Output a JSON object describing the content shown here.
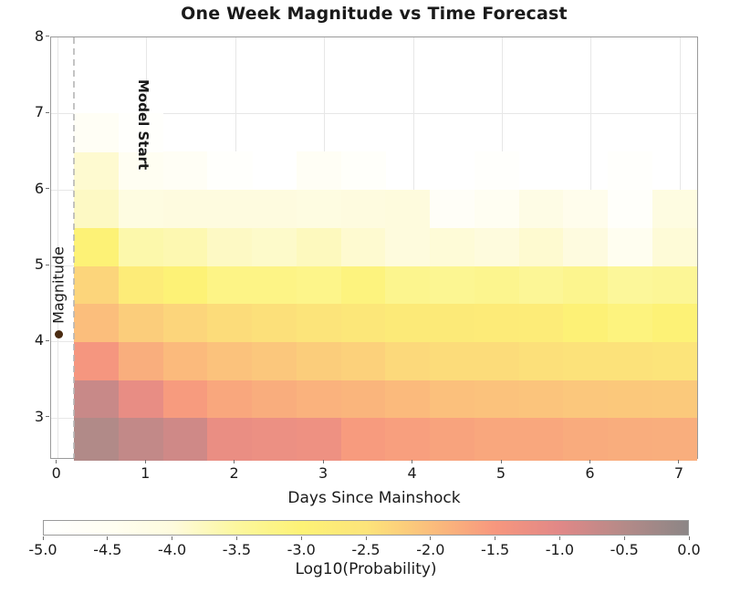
{
  "chart_data": {
    "type": "heatmap",
    "title": "One Week Magnitude vs Time Forecast",
    "xlabel": "Days Since Mainshock",
    "ylabel": "Magnitude",
    "x_ticks": [
      0,
      1,
      2,
      3,
      4,
      5,
      6,
      7
    ],
    "y_ticks": [
      3,
      4,
      5,
      6,
      7,
      8
    ],
    "xlim": [
      -0.07,
      7.25
    ],
    "ylim": [
      2.44,
      8.0
    ],
    "grid": true,
    "x_bin_start_day": 0.19,
    "x_bin_width_days": 0.5,
    "n_time_bins": 14,
    "mag_bin_edges": [
      2.5,
      3.0,
      3.5,
      4.0,
      4.5,
      5.0,
      5.5,
      6.0,
      6.5,
      7.0,
      7.5,
      8.0
    ],
    "rows_bottom_to_top": [
      {
        "mag_lo": 2.5,
        "mag_hi": 3.0,
        "values": [
          -0.45,
          -0.65,
          -0.8,
          -1.2,
          -1.25,
          -1.3,
          -1.55,
          -1.6,
          -1.65,
          -1.7,
          -1.7,
          -1.75,
          -1.78,
          -1.8
        ]
      },
      {
        "mag_lo": 3.0,
        "mag_hi": 3.5,
        "values": [
          -0.72,
          -1.15,
          -1.55,
          -1.7,
          -1.78,
          -1.85,
          -1.88,
          -1.95,
          -2.03,
          -2.05,
          -2.08,
          -2.12,
          -2.13,
          -2.15
        ]
      },
      {
        "mag_lo": 3.5,
        "mag_hi": 4.0,
        "values": [
          -1.45,
          -1.8,
          -1.95,
          -2.05,
          -2.12,
          -2.2,
          -2.25,
          -2.35,
          -2.4,
          -2.4,
          -2.45,
          -2.48,
          -2.48,
          -2.5
        ]
      },
      {
        "mag_lo": 4.0,
        "mag_hi": 4.5,
        "values": [
          -2.0,
          -2.2,
          -2.3,
          -2.4,
          -2.45,
          -2.5,
          -2.62,
          -2.7,
          -2.72,
          -2.75,
          -2.78,
          -2.95,
          -3.1,
          -3.0
        ]
      },
      {
        "mag_lo": 4.5,
        "mag_hi": 5.0,
        "values": [
          -2.3,
          -2.8,
          -3.0,
          -3.2,
          -3.2,
          -3.25,
          -3.1,
          -3.3,
          -3.35,
          -3.3,
          -3.4,
          -3.3,
          -3.45,
          -3.4
        ]
      },
      {
        "mag_lo": 5.0,
        "mag_hi": 5.5,
        "values": [
          -3.0,
          -3.6,
          -3.65,
          -3.8,
          -3.85,
          -3.75,
          -3.9,
          -4.0,
          -3.95,
          -4.0,
          -3.9,
          -4.05,
          -4.45,
          -3.95
        ]
      },
      {
        "mag_lo": 5.5,
        "mag_hi": 6.0,
        "values": [
          -3.8,
          -4.1,
          -4.05,
          -4.05,
          -4.05,
          -4.1,
          -4.05,
          -4.0,
          -4.7,
          -4.5,
          -4.2,
          -4.35,
          -4.8,
          -4.1
        ]
      },
      {
        "mag_lo": 6.0,
        "mag_hi": 6.5,
        "values": [
          -3.9,
          -4.5,
          -4.6,
          -4.9,
          -5.0,
          -4.6,
          -4.8,
          -5.0,
          -5.0,
          -4.9,
          -5.0,
          -5.0,
          -4.9,
          -5.0
        ]
      },
      {
        "mag_lo": 6.5,
        "mag_hi": 7.0,
        "values": [
          -4.6,
          -4.9,
          -5.0,
          -5.0,
          -5.0,
          -5.0,
          -5.0,
          -5.0,
          -5.0,
          -5.0,
          -5.0,
          -5.0,
          -5.0,
          -5.0
        ]
      },
      {
        "mag_lo": 7.0,
        "mag_hi": 7.5,
        "values": [
          -5.0,
          -5.0,
          -5.0,
          -5.0,
          -5.0,
          -5.0,
          -5.0,
          -5.0,
          -5.0,
          -5.0,
          -5.0,
          -5.0,
          -5.0,
          -5.0
        ]
      },
      {
        "mag_lo": 7.5,
        "mag_hi": 8.0,
        "values": [
          -5.0,
          -5.0,
          -5.0,
          -5.0,
          -5.0,
          -5.0,
          -5.0,
          -5.0,
          -5.0,
          -5.0,
          -5.0,
          -5.0,
          -5.0,
          -5.0
        ]
      }
    ],
    "colorbar": {
      "label": "Log10(Probability)",
      "ticks": [
        -5.0,
        -4.5,
        -4.0,
        -3.5,
        -3.0,
        -2.5,
        -2.0,
        -1.5,
        -1.0,
        -0.5,
        0.0
      ],
      "range": [
        -5.0,
        0.0
      ]
    },
    "colormap": {
      "anchors": [
        {
          "value": -5.0,
          "color": "#FFFFFF"
        },
        {
          "value": -4.5,
          "color": "#FFFEF2"
        },
        {
          "value": -4.0,
          "color": "#FEFBDD"
        },
        {
          "value": -3.5,
          "color": "#FCF79E"
        },
        {
          "value": -3.0,
          "color": "#FDF276"
        },
        {
          "value": -2.5,
          "color": "#FCE47A"
        },
        {
          "value": -2.0,
          "color": "#FBBE7C"
        },
        {
          "value": -1.5,
          "color": "#F7977E"
        },
        {
          "value": -1.0,
          "color": "#E18887"
        },
        {
          "value": -0.5,
          "color": "#B58A88"
        },
        {
          "value": 0.0,
          "color": "#8C8686"
        }
      ]
    },
    "annotations": {
      "model_start": {
        "label": "Model Start",
        "day": 0.19,
        "line_style": "dashed",
        "line_color": "#b5b5b5"
      },
      "mainshock_marker": {
        "day": 0.02,
        "magnitude": 4.1,
        "color": "#4A2B12"
      }
    },
    "legend": "none"
  }
}
